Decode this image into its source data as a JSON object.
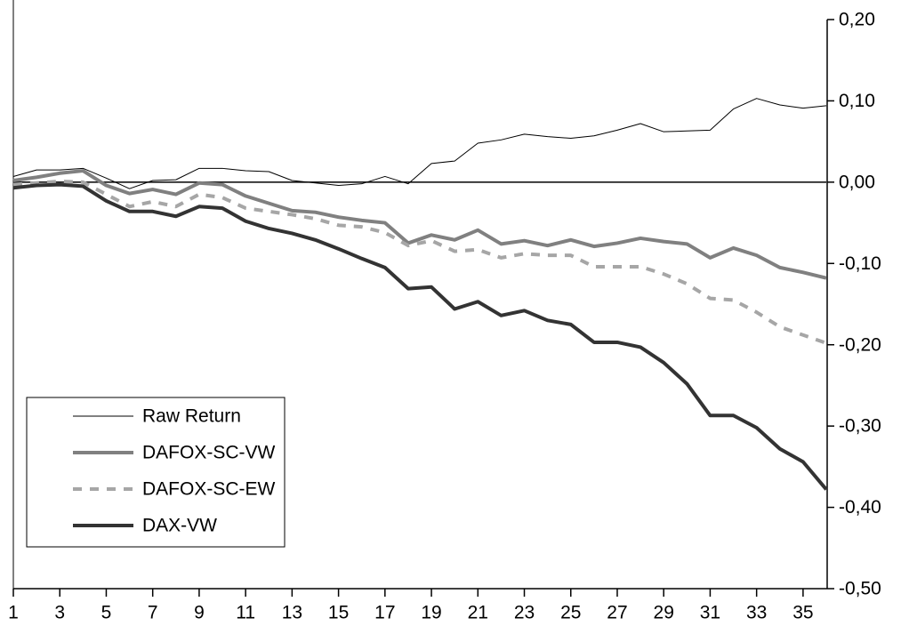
{
  "chart_data": {
    "type": "line",
    "x": [
      1,
      2,
      3,
      4,
      5,
      6,
      7,
      8,
      9,
      10,
      11,
      12,
      13,
      14,
      15,
      16,
      17,
      18,
      19,
      20,
      21,
      22,
      23,
      24,
      25,
      26,
      27,
      28,
      29,
      30,
      31,
      32,
      33,
      34,
      35,
      36
    ],
    "xlim": [
      1,
      36
    ],
    "xticks": [
      1,
      3,
      5,
      7,
      9,
      11,
      13,
      15,
      17,
      19,
      21,
      23,
      25,
      27,
      29,
      31,
      33,
      35
    ],
    "ylim": [
      -0.5,
      0.2
    ],
    "yticks": [
      {
        "value": 0.2,
        "label": "0,20"
      },
      {
        "value": 0.1,
        "label": "0,10"
      },
      {
        "value": 0,
        "label": "0,00"
      },
      {
        "value": -0.1,
        "label": "-0,10"
      },
      {
        "value": -0.2,
        "label": "-0,20"
      },
      {
        "value": -0.3,
        "label": "-0,30"
      },
      {
        "value": -0.4,
        "label": "-0,40"
      },
      {
        "value": -0.5,
        "label": "-0,50"
      }
    ],
    "legend": "lower left",
    "series": [
      {
        "name": "Raw Return",
        "color": "#000000",
        "values": [
          0.007,
          0.015,
          0.015,
          0.017,
          0.005,
          -0.008,
          0.002,
          0.003,
          0.017,
          0.017,
          0.014,
          0.013,
          0.002,
          -0.001,
          -0.004,
          -0.002,
          0.007,
          -0.002,
          0.023,
          0.026,
          0.048,
          0.052,
          0.059,
          0.056,
          0.054,
          0.057,
          0.064,
          0.072,
          0.062,
          0.063,
          0.064,
          0.09,
          0.103,
          0.095,
          0.091,
          0.094
        ]
      },
      {
        "name": "DAFOX-SC-VW",
        "color": "#808080",
        "values": [
          0.002,
          0.006,
          0.011,
          0.014,
          -0.004,
          -0.014,
          -0.009,
          -0.015,
          -0.001,
          -0.003,
          -0.017,
          -0.026,
          -0.035,
          -0.037,
          -0.043,
          -0.047,
          -0.05,
          -0.075,
          -0.065,
          -0.071,
          -0.059,
          -0.076,
          -0.072,
          -0.078,
          -0.071,
          -0.079,
          -0.075,
          -0.069,
          -0.073,
          -0.076,
          -0.093,
          -0.081,
          -0.09,
          -0.105,
          -0.111,
          -0.118
        ]
      },
      {
        "name": "DAFOX-SC-EW",
        "color": "#a6a6a6",
        "values": [
          -0.003,
          -0.001,
          0.001,
          0.0,
          -0.015,
          -0.03,
          -0.024,
          -0.03,
          -0.015,
          -0.019,
          -0.032,
          -0.036,
          -0.04,
          -0.045,
          -0.053,
          -0.055,
          -0.062,
          -0.078,
          -0.072,
          -0.085,
          -0.083,
          -0.093,
          -0.088,
          -0.09,
          -0.09,
          -0.104,
          -0.104,
          -0.104,
          -0.113,
          -0.125,
          -0.143,
          -0.145,
          -0.16,
          -0.178,
          -0.188,
          -0.198
        ]
      },
      {
        "name": "DAX-VW",
        "color": "#333333",
        "values": [
          -0.007,
          -0.004,
          -0.003,
          -0.005,
          -0.023,
          -0.036,
          -0.036,
          -0.042,
          -0.03,
          -0.032,
          -0.048,
          -0.057,
          -0.063,
          -0.071,
          -0.082,
          -0.094,
          -0.105,
          -0.131,
          -0.129,
          -0.156,
          -0.147,
          -0.164,
          -0.158,
          -0.17,
          -0.175,
          -0.197,
          -0.197,
          -0.203,
          -0.222,
          -0.248,
          -0.287,
          -0.287,
          -0.302,
          -0.328,
          -0.344,
          -0.378
        ]
      }
    ]
  }
}
